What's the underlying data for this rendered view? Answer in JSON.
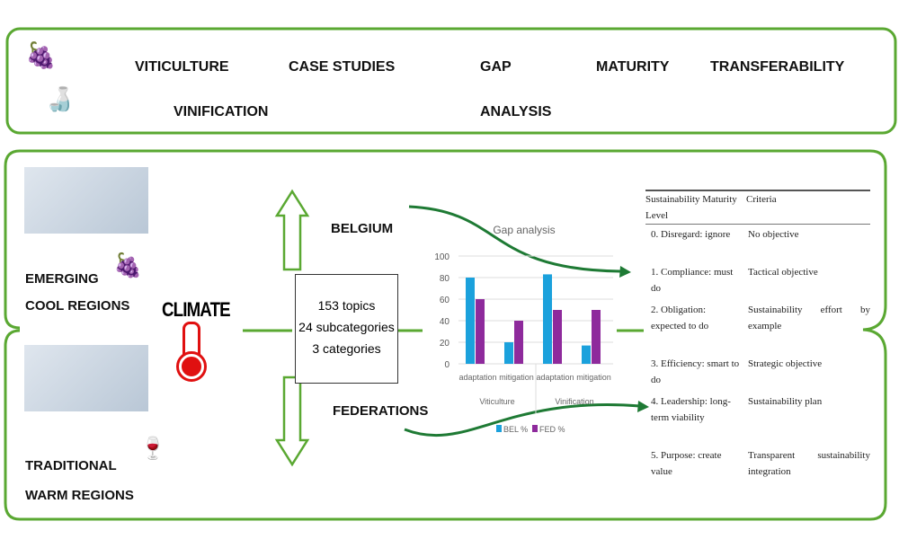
{
  "header": {
    "items": [
      "VITICULTURE",
      "CASE STUDIES",
      "GAP",
      "MATURITY",
      "TRANSFERABILITY",
      "VINIFICATION",
      "ANALYSIS"
    ]
  },
  "left": {
    "emerging": [
      "EMERGING",
      "COOL REGIONS"
    ],
    "traditional": [
      "TRADITIONAL",
      "WARM REGIONS"
    ],
    "climate": "CLIMATE"
  },
  "center": {
    "topics": [
      "153 topics",
      "24 subcategories",
      "3 categories"
    ],
    "belgium": "BELGIUM",
    "federations": "FEDERATIONS"
  },
  "colors": {
    "green": "#5aa832",
    "arrow": "#1e7a34",
    "bel": "#1ba1dc",
    "fed": "#8e2a9c"
  },
  "chart_data": {
    "type": "bar",
    "title": "Gap analysis",
    "ylim": [
      0,
      100
    ],
    "yticks": [
      "0",
      "20",
      "40",
      "60",
      "80",
      "100"
    ],
    "categories": [
      "adaptation",
      "mitigation",
      "adaptation",
      "mitigation"
    ],
    "groups": [
      "Viticulture",
      "Vinification"
    ],
    "series": [
      {
        "name": "BEL %",
        "values": [
          80,
          20,
          83,
          17
        ]
      },
      {
        "name": "FED %",
        "values": [
          60,
          40,
          50,
          50
        ]
      }
    ],
    "legend": "bottom",
    "grid": true
  },
  "table": {
    "headers": [
      "Sustainability Maturity Level",
      "Criteria"
    ],
    "rows": [
      [
        "0. Disregard: ignore",
        "No objective"
      ],
      [
        "1. Compliance: must do",
        "Tactical objective"
      ],
      [
        "2. Obligation: expected to do",
        "Sustainability effort by example"
      ],
      [
        "3. Efficiency: smart to do",
        "Strategic objective"
      ],
      [
        "4. Leadership: long-term viability",
        "Sustainability plan"
      ],
      [
        "5. Purpose: create value",
        "Transparent sustainability integration"
      ]
    ]
  }
}
